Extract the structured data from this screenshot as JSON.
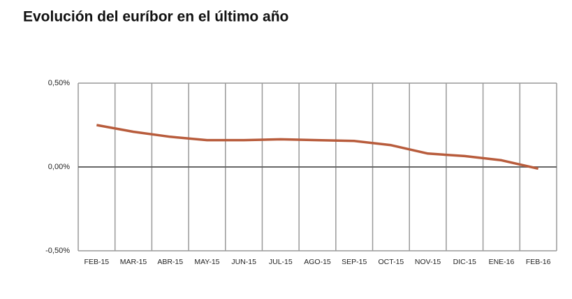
{
  "chart_data": {
    "type": "line",
    "title": "Evolución del euríbor en el último año",
    "categories": [
      "FEB-15",
      "MAR-15",
      "ABR-15",
      "MAY-15",
      "JUN-15",
      "JUL-15",
      "AGO-15",
      "SEP-15",
      "OCT-15",
      "NOV-15",
      "DIC-15",
      "ENE-16",
      "FEB-16"
    ],
    "series": [
      {
        "color": "#b85c3c",
        "values": [
          0.25,
          0.21,
          0.18,
          0.16,
          0.16,
          0.165,
          0.16,
          0.155,
          0.13,
          0.08,
          0.065,
          0.04,
          -0.01
        ]
      }
    ],
    "ylim": [
      -0.5,
      0.5
    ],
    "yticks": [
      {
        "value": -0.5,
        "label": "-0,50%"
      },
      {
        "value": 0,
        "label": "0,00%"
      },
      {
        "value": 0.5,
        "label": "0,50%"
      }
    ],
    "grid": true
  }
}
